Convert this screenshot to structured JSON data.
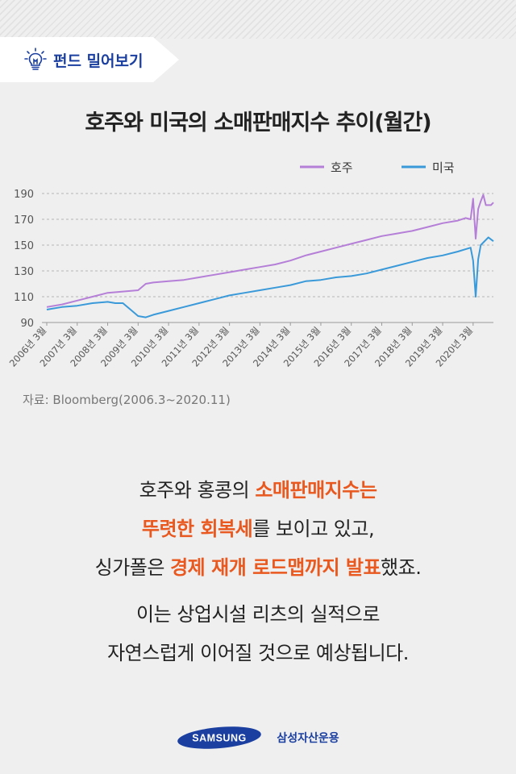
{
  "header": {
    "badge_label": "펀드 밀어보기"
  },
  "chart_data": {
    "type": "line",
    "title": "호주와 미국의 소매판매지수 추이(월간)",
    "ylim": [
      90,
      190
    ],
    "yticks": [
      90,
      110,
      130,
      150,
      170,
      190
    ],
    "x_range": [
      "2006-03",
      "2020-11"
    ],
    "x_ticks": [
      "2006년 3월",
      "2007년 3월",
      "2008년 3월",
      "2009년 3월",
      "2010년 3월",
      "2011년 3월",
      "2012년 3월",
      "2013년 3월",
      "2014년 3월",
      "2015년 3월",
      "2016년 3월",
      "2017년 3월",
      "2018년 3월",
      "2019년 3월",
      "2020년 3월"
    ],
    "grid": "horizontal dashed",
    "legend_position": "top-right",
    "series": [
      {
        "name": "호주",
        "color": "#b57fd8",
        "points": [
          [
            "2006-03",
            102
          ],
          [
            "2006-09",
            104
          ],
          [
            "2007-03",
            107
          ],
          [
            "2007-09",
            110
          ],
          [
            "2008-03",
            113
          ],
          [
            "2008-09",
            114
          ],
          [
            "2009-03",
            115
          ],
          [
            "2009-06",
            120
          ],
          [
            "2009-09",
            121
          ],
          [
            "2010-03",
            122
          ],
          [
            "2010-09",
            123
          ],
          [
            "2011-03",
            125
          ],
          [
            "2011-09",
            127
          ],
          [
            "2012-03",
            129
          ],
          [
            "2012-09",
            131
          ],
          [
            "2013-03",
            133
          ],
          [
            "2013-09",
            135
          ],
          [
            "2014-03",
            138
          ],
          [
            "2014-09",
            142
          ],
          [
            "2015-03",
            145
          ],
          [
            "2015-09",
            148
          ],
          [
            "2016-03",
            151
          ],
          [
            "2016-09",
            154
          ],
          [
            "2017-03",
            157
          ],
          [
            "2017-09",
            159
          ],
          [
            "2018-03",
            161
          ],
          [
            "2018-09",
            164
          ],
          [
            "2019-03",
            167
          ],
          [
            "2019-09",
            169
          ],
          [
            "2019-12",
            171
          ],
          [
            "2020-02",
            170
          ],
          [
            "2020-03",
            186
          ],
          [
            "2020-04",
            155
          ],
          [
            "2020-05",
            178
          ],
          [
            "2020-06",
            184
          ],
          [
            "2020-07",
            189
          ],
          [
            "2020-08",
            181
          ],
          [
            "2020-10",
            181
          ],
          [
            "2020-11",
            183
          ]
        ]
      },
      {
        "name": "미국",
        "color": "#3a9ad9",
        "points": [
          [
            "2006-03",
            100
          ],
          [
            "2006-09",
            102
          ],
          [
            "2007-03",
            103
          ],
          [
            "2007-09",
            105
          ],
          [
            "2008-03",
            106
          ],
          [
            "2008-06",
            105
          ],
          [
            "2008-09",
            105
          ],
          [
            "2008-12",
            100
          ],
          [
            "2009-03",
            95
          ],
          [
            "2009-06",
            94
          ],
          [
            "2009-09",
            96
          ],
          [
            "2010-03",
            99
          ],
          [
            "2010-09",
            102
          ],
          [
            "2011-03",
            105
          ],
          [
            "2011-09",
            108
          ],
          [
            "2012-03",
            111
          ],
          [
            "2012-09",
            113
          ],
          [
            "2013-03",
            115
          ],
          [
            "2013-09",
            117
          ],
          [
            "2014-03",
            119
          ],
          [
            "2014-09",
            122
          ],
          [
            "2015-03",
            123
          ],
          [
            "2015-09",
            125
          ],
          [
            "2016-03",
            126
          ],
          [
            "2016-09",
            128
          ],
          [
            "2017-03",
            131
          ],
          [
            "2017-09",
            134
          ],
          [
            "2018-03",
            137
          ],
          [
            "2018-09",
            140
          ],
          [
            "2019-03",
            142
          ],
          [
            "2019-09",
            145
          ],
          [
            "2020-02",
            148
          ],
          [
            "2020-03",
            138
          ],
          [
            "2020-04",
            110
          ],
          [
            "2020-05",
            139
          ],
          [
            "2020-06",
            150
          ],
          [
            "2020-09",
            156
          ],
          [
            "2020-11",
            153
          ]
        ]
      }
    ]
  },
  "source_text": "자료: Bloomberg(2006.3~2020.11)",
  "body": {
    "p1_pre": "호주와 홍콩의 ",
    "p1_hl": "소매판매지수는",
    "p2_hl": "뚜렷한 회복세",
    "p2_post": "를 보이고 있고,",
    "p3_pre": "싱가폴은 ",
    "p3_hl": "경제 재개 로드맵까지 발표",
    "p3_post": "했죠.",
    "p4": "이는 상업시설 리츠의 실적으로",
    "p5": "자연스럽게 이어질 것으로 예상됩니다."
  },
  "footer": {
    "logo_text": "SAMSUNG",
    "company": "삼성자산운용",
    "accent": "#1a3fa0"
  }
}
